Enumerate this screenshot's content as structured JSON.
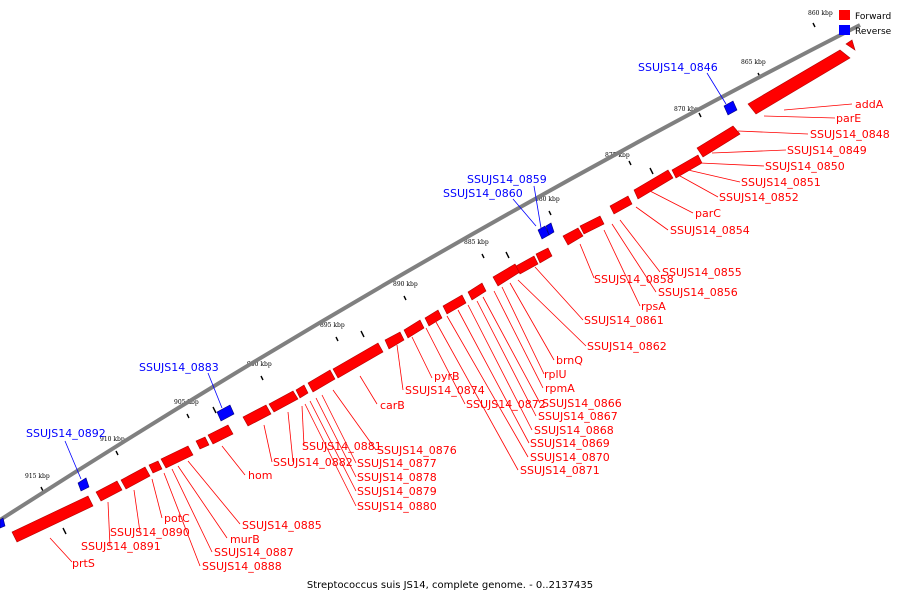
{
  "caption": "Streptococcus suis JS14, complete genome. - 0..2137435",
  "legend": [
    {
      "label": "Forward",
      "color": "#ff0000"
    },
    {
      "label": "Reverse",
      "color": "#0000ff"
    }
  ],
  "colors": {
    "forward": "#ff0000",
    "reverse": "#0000ff",
    "backbone": "#808080"
  },
  "scale_ticks": [
    "860 kbp",
    "865 kbp",
    "870 kbp",
    "875 kbp",
    "880 kbp",
    "885 kbp",
    "890 kbp",
    "895 kbp",
    "900 kbp",
    "905 kbp",
    "910 kbp",
    "915 kbp"
  ],
  "forward_labels": [
    "addA",
    "parE",
    "SSUJS14_0848",
    "SSUJS14_0849",
    "SSUJS14_0850",
    "SSUJS14_0851",
    "SSUJS14_0852",
    "parC",
    "SSUJS14_0854",
    "SSUJS14_0855",
    "SSUJS14_0856",
    "SSUJS14_0858",
    "rpsA",
    "SSUJS14_0861",
    "SSUJS14_0862",
    "brnQ",
    "rplU",
    "rpmA",
    "SSUJS14_0866",
    "SSUJS14_0867",
    "SSUJS14_0868",
    "SSUJS14_0869",
    "SSUJS14_0870",
    "SSUJS14_0871",
    "SSUJS14_0872",
    "SSUJS14_0874",
    "pyrB",
    "carB",
    "SSUJS14_0876",
    "SSUJS14_0877",
    "SSUJS14_0878",
    "SSUJS14_0879",
    "SSUJS14_0880",
    "SSUJS14_0881",
    "SSUJS14_0882",
    "hom",
    "SSUJS14_0885",
    "murB",
    "SSUJS14_0887",
    "SSUJS14_0888",
    "potC",
    "SSUJS14_0890",
    "SSUJS14_0891",
    "prtS"
  ],
  "reverse_labels": [
    "SSUJS14_0846",
    "SSUJS14_0859",
    "SSUJS14_0860",
    "SSUJS14_0883",
    "SSUJS14_0892"
  ]
}
